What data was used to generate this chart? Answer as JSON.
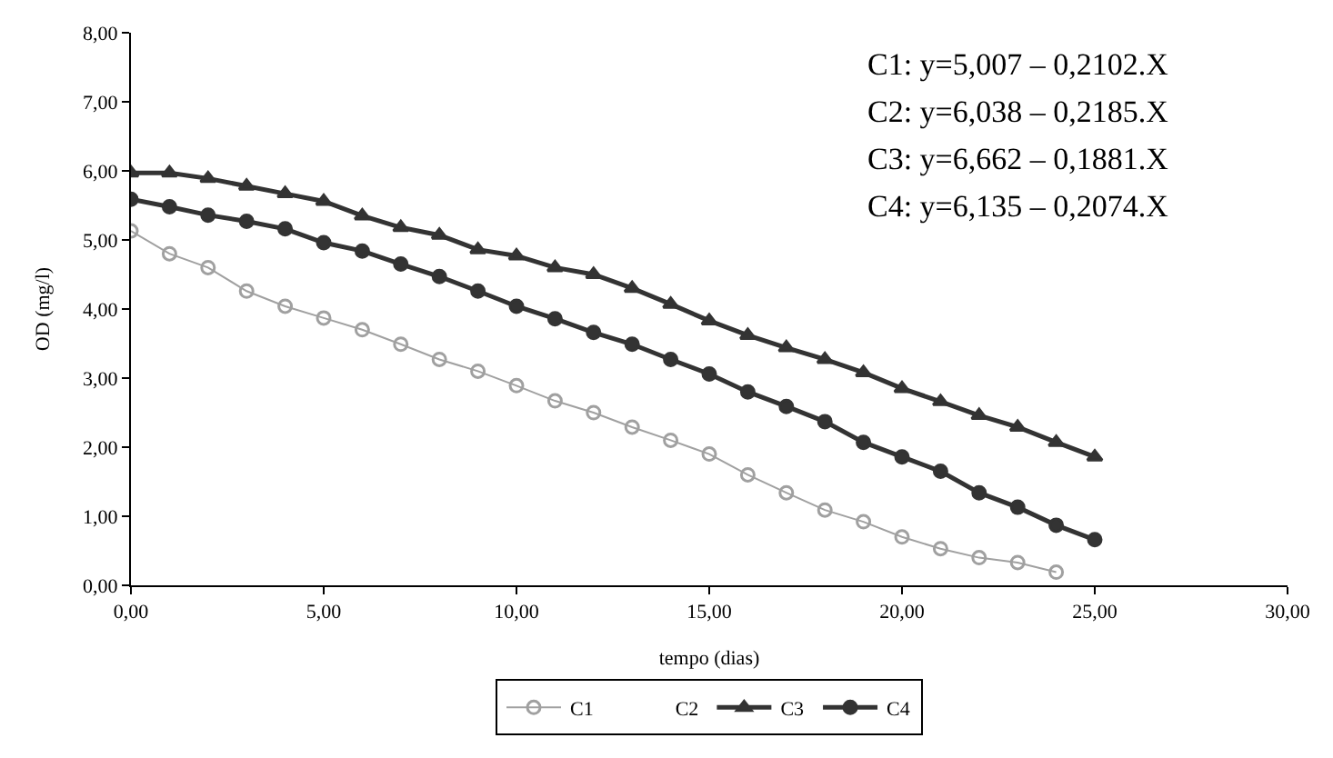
{
  "chart_data": {
    "type": "line",
    "xlabel": "tempo (dias)",
    "ylabel": "OD (mg/l)",
    "x": [
      0,
      1,
      2,
      3,
      4,
      5,
      6,
      7,
      8,
      9,
      10,
      11,
      12,
      13,
      14,
      15,
      16,
      17,
      18,
      19,
      20,
      21,
      22,
      23,
      24,
      25
    ],
    "series": [
      {
        "name": "C1",
        "color": "#a0a0a0",
        "marker": "circle",
        "values": [
          5.13,
          4.8,
          4.6,
          4.26,
          4.04,
          3.87,
          3.7,
          3.49,
          3.27,
          3.1,
          2.89,
          2.67,
          2.5,
          2.29,
          2.1,
          1.9,
          1.6,
          1.34,
          1.09,
          0.92,
          0.7,
          0.53,
          0.4,
          0.33,
          0.19,
          null
        ]
      },
      {
        "name": "C2",
        "marker": "none",
        "values": [
          null,
          null,
          null,
          null,
          null,
          null,
          null,
          null,
          null,
          null,
          null,
          null,
          null,
          null,
          null,
          null,
          null,
          null,
          null,
          null,
          null,
          null,
          null,
          null,
          null,
          null
        ]
      },
      {
        "name": "C3",
        "color": "#333333",
        "marker": "triangle",
        "values": [
          5.97,
          5.97,
          5.89,
          5.78,
          5.67,
          5.56,
          5.35,
          5.18,
          5.07,
          4.86,
          4.77,
          4.6,
          4.5,
          4.3,
          4.07,
          3.83,
          3.62,
          3.44,
          3.27,
          3.08,
          2.85,
          2.66,
          2.46,
          2.29,
          2.07,
          1.86
        ]
      },
      {
        "name": "C4",
        "color": "#333333",
        "marker": "circle",
        "values": [
          5.59,
          5.48,
          5.36,
          5.27,
          5.16,
          4.96,
          4.84,
          4.65,
          4.47,
          4.26,
          4.04,
          3.86,
          3.66,
          3.49,
          3.27,
          3.06,
          2.8,
          2.59,
          2.37,
          2.07,
          1.86,
          1.65,
          1.34,
          1.13,
          0.87,
          0.66
        ]
      }
    ],
    "xlim": [
      0,
      30
    ],
    "xticks": [
      {
        "value": 0,
        "label": "0,00"
      },
      {
        "value": 5,
        "label": "5,00"
      },
      {
        "value": 10,
        "label": "10,00"
      },
      {
        "value": 15,
        "label": "15,00"
      },
      {
        "value": 20,
        "label": "20,00"
      },
      {
        "value": 25,
        "label": "25,00"
      },
      {
        "value": 30,
        "label": "30,00"
      }
    ],
    "ylim": [
      0,
      8
    ],
    "yticks": [
      {
        "value": 0,
        "label": "0,00"
      },
      {
        "value": 1,
        "label": "1,00"
      },
      {
        "value": 2,
        "label": "2,00"
      },
      {
        "value": 3,
        "label": "3,00"
      },
      {
        "value": 4,
        "label": "4,00"
      },
      {
        "value": 5,
        "label": "5,00"
      },
      {
        "value": 6,
        "label": "6,00"
      },
      {
        "value": 7,
        "label": "7,00"
      },
      {
        "value": 8,
        "label": "8,00"
      }
    ],
    "annotations": [
      "C1: y=5,007 – 0,2102.X",
      "C2: y=6,038 – 0,2185.X",
      "C3: y=6,662 – 0,1881.X",
      "C4: y=6,135 – 0,2074.X"
    ],
    "legend": "bottom",
    "line_style": "solid"
  }
}
